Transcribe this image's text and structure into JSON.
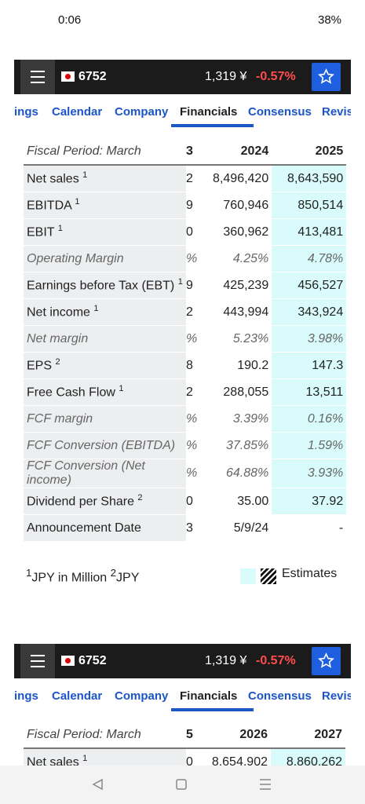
{
  "status_bar": {
    "time": "0:06",
    "battery": "38%"
  },
  "header": {
    "ticker": "6752",
    "price": "1,319 ¥",
    "change": "-0.57%"
  },
  "tabs": [
    "ings",
    "Calendar",
    "Company",
    "Financials",
    "Consensus",
    "Revisi"
  ],
  "tables": [
    {
      "columns": [
        "Fiscal Period: March",
        "3",
        "2024",
        "2025"
      ],
      "rows": [
        {
          "label": "Net sales",
          "sup": "1",
          "cells": [
            "2",
            "8,496,420",
            "8,643,590"
          ]
        },
        {
          "label": "EBITDA",
          "sup": "1",
          "cells": [
            "9",
            "760,946",
            "850,514"
          ]
        },
        {
          "label": "EBIT",
          "sup": "1",
          "cells": [
            "0",
            "360,962",
            "413,481"
          ]
        },
        {
          "label": "Operating Margin",
          "italic": true,
          "cells": [
            "%",
            "4.25%",
            "4.78%"
          ]
        },
        {
          "label": "Earnings before Tax (EBT)",
          "sup": "1",
          "cells": [
            "9",
            "425,239",
            "456,527"
          ]
        },
        {
          "label": "Net income",
          "sup": "1",
          "cells": [
            "2",
            "443,994",
            "343,924"
          ]
        },
        {
          "label": "Net margin",
          "italic": true,
          "cells": [
            "%",
            "5.23%",
            "3.98%"
          ]
        },
        {
          "label": "EPS",
          "sup": "2",
          "cells": [
            "8",
            "190.2",
            "147.3"
          ]
        },
        {
          "label": "Free Cash Flow",
          "sup": "1",
          "cells": [
            "2",
            "288,055",
            "13,511"
          ]
        },
        {
          "label": "FCF margin",
          "italic": true,
          "cells": [
            "%",
            "3.39%",
            "0.16%"
          ]
        },
        {
          "label": "FCF Conversion (EBITDA)",
          "italic": true,
          "cells": [
            "%",
            "37.85%",
            "1.59%"
          ]
        },
        {
          "label": "FCF Conversion (Net income)",
          "italic": true,
          "cells": [
            "%",
            "64.88%",
            "3.93%"
          ]
        },
        {
          "label": "Dividend per Share",
          "sup": "2",
          "cells": [
            "0",
            "35.00",
            "37.92"
          ]
        },
        {
          "label": "Announcement Date",
          "cells": [
            "3",
            "5/9/24",
            "-"
          ]
        }
      ]
    },
    {
      "columns": [
        "Fiscal Period: March",
        "5",
        "2026",
        "2027"
      ],
      "rows": [
        {
          "label": "Net sales",
          "sup": "1",
          "cells": [
            "0",
            "8,654,902",
            "8,860,262"
          ]
        }
      ]
    }
  ],
  "footnotes": [
    {
      "sup": "1",
      "text": "JPY in Million"
    },
    {
      "sup": "2",
      "text": "JPY"
    }
  ],
  "legend": "Estimates"
}
